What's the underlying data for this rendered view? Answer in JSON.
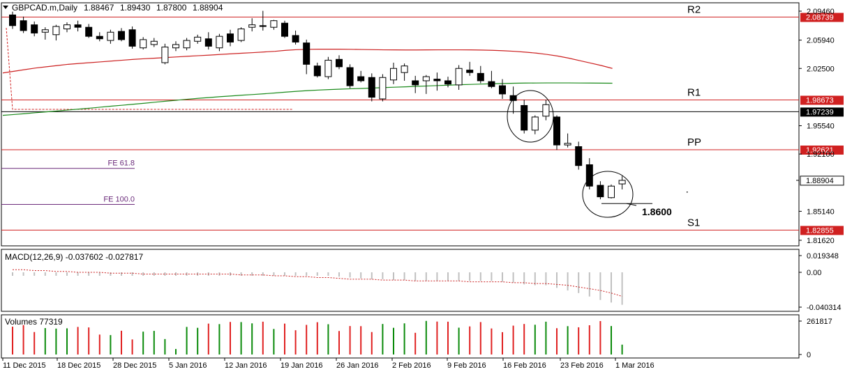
{
  "header": {
    "symbol": "GBPCAD.m,Daily",
    "open": "1.88467",
    "high": "1.89430",
    "low": "1.87800",
    "close": "1.88904"
  },
  "price_axis": {
    "ticks": [
      "2.09460",
      "2.05940",
      "2.02500",
      "1.95540",
      "1.92100",
      "1.85140",
      "1.81620"
    ]
  },
  "levels": [
    {
      "name": "R2",
      "price": 2.08739,
      "label": "2.08739",
      "color": "#d02020"
    },
    {
      "name": "R1",
      "price": 1.98673,
      "label": "1.98673",
      "color": "#d02020"
    },
    {
      "name": "",
      "price": 1.97239,
      "label": "1.97239",
      "color": "#000000"
    },
    {
      "name": "PP",
      "price": 1.92621,
      "label": "1.92621",
      "color": "#d02020"
    },
    {
      "name": "S1",
      "price": 1.82855,
      "label": "1.82855",
      "color": "#d02020"
    }
  ],
  "current_price": {
    "label": "1.88904",
    "price": 1.88904
  },
  "fibonacci": [
    {
      "label": "FE 61.8",
      "price": 1.9036
    },
    {
      "label": "FE 100.0",
      "price": 1.8598
    }
  ],
  "annotation": {
    "label": "1.8600",
    "price": 1.86
  },
  "macd": {
    "label": "MACD(12,26,9) -0.037602 -0.027817",
    "ticks": [
      "0.019348",
      "0.00",
      "-0.040314"
    ],
    "max": 0.019348,
    "min": -0.040314
  },
  "volume": {
    "label": "Volumes 77319",
    "ticks": [
      "261817",
      "0"
    ],
    "max": 261817
  },
  "time_axis": {
    "labels": [
      "11 Dec 2015",
      "18 Dec 2015",
      "28 Dec 2015",
      "5 Jan 2016",
      "12 Jan 2016",
      "19 Jan 2016",
      "26 Jan 2016",
      "2 Feb 2016",
      "9 Feb 2016",
      "16 Feb 2016",
      "23 Feb 2016",
      "1 Mar 2016"
    ]
  },
  "colors": {
    "bull_body": "#ffffff",
    "bear_body": "#000000",
    "ma_slow": "#cc2020",
    "ma_fast": "#1a8a1a",
    "vol_up": "#0a8a0a",
    "vol_down": "#e02020",
    "macd_hist": "#c0c0c0",
    "macd_signal": "#cc2020"
  },
  "chart_data": {
    "type": "candlestick",
    "candles": [
      {
        "o": 2.09,
        "h": 2.094,
        "l": 2.073,
        "c": 2.077
      },
      {
        "o": 2.083,
        "h": 2.088,
        "l": 2.068,
        "c": 2.071
      },
      {
        "o": 2.078,
        "h": 2.082,
        "l": 2.064,
        "c": 2.068
      },
      {
        "o": 2.069,
        "h": 2.075,
        "l": 2.06,
        "c": 2.072
      },
      {
        "o": 2.066,
        "h": 2.078,
        "l": 2.059,
        "c": 2.076
      },
      {
        "o": 2.073,
        "h": 2.081,
        "l": 2.069,
        "c": 2.078
      },
      {
        "o": 2.078,
        "h": 2.083,
        "l": 2.07,
        "c": 2.075
      },
      {
        "o": 2.075,
        "h": 2.079,
        "l": 2.062,
        "c": 2.064
      },
      {
        "o": 2.064,
        "h": 2.069,
        "l": 2.058,
        "c": 2.061
      },
      {
        "o": 2.059,
        "h": 2.072,
        "l": 2.055,
        "c": 2.069
      },
      {
        "o": 2.07,
        "h": 2.074,
        "l": 2.058,
        "c": 2.06
      },
      {
        "o": 2.072,
        "h": 2.076,
        "l": 2.049,
        "c": 2.052
      },
      {
        "o": 2.05,
        "h": 2.063,
        "l": 2.048,
        "c": 2.06
      },
      {
        "o": 2.054,
        "h": 2.062,
        "l": 2.051,
        "c": 2.058
      },
      {
        "o": 2.032,
        "h": 2.055,
        "l": 2.03,
        "c": 2.051
      },
      {
        "o": 2.05,
        "h": 2.058,
        "l": 2.046,
        "c": 2.054
      },
      {
        "o": 2.05,
        "h": 2.062,
        "l": 2.047,
        "c": 2.059
      },
      {
        "o": 2.058,
        "h": 2.066,
        "l": 2.055,
        "c": 2.063
      },
      {
        "o": 2.061,
        "h": 2.069,
        "l": 2.048,
        "c": 2.052
      },
      {
        "o": 2.05,
        "h": 2.067,
        "l": 2.046,
        "c": 2.064
      },
      {
        "o": 2.067,
        "h": 2.072,
        "l": 2.052,
        "c": 2.057
      },
      {
        "o": 2.059,
        "h": 2.075,
        "l": 2.057,
        "c": 2.073
      },
      {
        "o": 2.075,
        "h": 2.086,
        "l": 2.07,
        "c": 2.078
      },
      {
        "o": 2.077,
        "h": 2.095,
        "l": 2.071,
        "c": 2.076
      },
      {
        "o": 2.075,
        "h": 2.084,
        "l": 2.072,
        "c": 2.083
      },
      {
        "o": 2.08,
        "h": 2.083,
        "l": 2.062,
        "c": 2.064
      },
      {
        "o": 2.065,
        "h": 2.071,
        "l": 2.054,
        "c": 2.057
      },
      {
        "o": 2.056,
        "h": 2.06,
        "l": 2.018,
        "c": 2.03
      },
      {
        "o": 2.028,
        "h": 2.032,
        "l": 2.014,
        "c": 2.016
      },
      {
        "o": 2.015,
        "h": 2.039,
        "l": 2.012,
        "c": 2.035
      },
      {
        "o": 2.036,
        "h": 2.041,
        "l": 2.024,
        "c": 2.027
      },
      {
        "o": 2.026,
        "h": 2.03,
        "l": 2.001,
        "c": 2.004
      },
      {
        "o": 2.015,
        "h": 2.022,
        "l": 2.008,
        "c": 2.01
      },
      {
        "o": 2.014,
        "h": 2.019,
        "l": 1.985,
        "c": 1.99
      },
      {
        "o": 1.988,
        "h": 2.018,
        "l": 1.985,
        "c": 2.014
      },
      {
        "o": 2.011,
        "h": 2.032,
        "l": 2.006,
        "c": 2.025
      },
      {
        "o": 2.02,
        "h": 2.031,
        "l": 2.01,
        "c": 2.028
      },
      {
        "o": 2.01,
        "h": 2.016,
        "l": 1.995,
        "c": 2.005
      },
      {
        "o": 2.01,
        "h": 2.017,
        "l": 1.994,
        "c": 2.015
      },
      {
        "o": 2.012,
        "h": 2.02,
        "l": 1.998,
        "c": 2.01
      },
      {
        "o": 2.01,
        "h": 2.015,
        "l": 2.002,
        "c": 2.006
      },
      {
        "o": 2.005,
        "h": 2.029,
        "l": 1.999,
        "c": 2.025
      },
      {
        "o": 2.023,
        "h": 2.033,
        "l": 2.016,
        "c": 2.02
      },
      {
        "o": 2.019,
        "h": 2.028,
        "l": 2.007,
        "c": 2.01
      },
      {
        "o": 2.009,
        "h": 2.022,
        "l": 2.001,
        "c": 2.003
      },
      {
        "o": 2.004,
        "h": 2.012,
        "l": 1.988,
        "c": 1.994
      },
      {
        "o": 1.992,
        "h": 2.003,
        "l": 1.97,
        "c": 1.986
      },
      {
        "o": 1.98,
        "h": 1.987,
        "l": 1.946,
        "c": 1.95
      },
      {
        "o": 1.95,
        "h": 1.968,
        "l": 1.945,
        "c": 1.966
      },
      {
        "o": 1.967,
        "h": 1.987,
        "l": 1.962,
        "c": 1.981
      },
      {
        "o": 1.966,
        "h": 1.968,
        "l": 1.926,
        "c": 1.932
      },
      {
        "o": 1.932,
        "h": 1.946,
        "l": 1.929,
        "c": 1.934
      },
      {
        "o": 1.93,
        "h": 1.936,
        "l": 1.902,
        "c": 1.907
      },
      {
        "o": 1.908,
        "h": 1.916,
        "l": 1.878,
        "c": 1.882
      },
      {
        "o": 1.883,
        "h": 1.888,
        "l": 1.866,
        "c": 1.869
      },
      {
        "o": 1.868,
        "h": 1.884,
        "l": 1.867,
        "c": 1.882
      },
      {
        "o": 1.88467,
        "h": 1.8943,
        "l": 1.878,
        "c": 1.88904
      }
    ],
    "volumes": [
      218000,
      230000,
      176000,
      207000,
      203000,
      205000,
      216000,
      212000,
      156000,
      152000,
      186000,
      118000,
      179000,
      185000,
      121000,
      43000,
      216000,
      209000,
      242000,
      238000,
      255000,
      254000,
      244000,
      257000,
      200000,
      242000,
      190000,
      232000,
      253000,
      237000,
      184000,
      223000,
      222000,
      176000,
      239000,
      209000,
      244000,
      170000,
      263000,
      258000,
      257000,
      210000,
      220000,
      254000,
      204000,
      175000,
      226000,
      239000,
      233000,
      257000,
      206000,
      222000,
      213000,
      229000,
      261817,
      223000,
      77319
    ],
    "macd_hist": [
      -0.004,
      -0.004,
      -0.004,
      -0.004,
      -0.004,
      -0.004,
      -0.004,
      -0.004,
      -0.004,
      -0.004,
      -0.004,
      -0.004,
      -0.004,
      -0.004,
      -0.004,
      -0.004,
      -0.004,
      -0.004,
      -0.004,
      -0.004,
      -0.004,
      -0.004,
      -0.004,
      -0.004,
      -0.004,
      -0.004,
      -0.004,
      -0.004,
      -0.004,
      -0.004,
      -0.005,
      -0.006,
      -0.007,
      -0.008,
      -0.008,
      -0.009,
      -0.009,
      -0.01,
      -0.01,
      -0.01,
      -0.01,
      -0.01,
      -0.01,
      -0.01,
      -0.01,
      -0.011,
      -0.012,
      -0.014,
      -0.015,
      -0.015,
      -0.018,
      -0.021,
      -0.024,
      -0.028,
      -0.032,
      -0.035,
      -0.037602
    ],
    "macd_signal": [
      0.003,
      0.003,
      0.002,
      0.002,
      0.001,
      0.001,
      0.0,
      0.0,
      0.0,
      -0.001,
      -0.001,
      -0.001,
      -0.002,
      -0.002,
      -0.002,
      -0.002,
      -0.002,
      -0.002,
      -0.002,
      -0.002,
      -0.002,
      -0.003,
      -0.003,
      -0.003,
      -0.004,
      -0.004,
      -0.005,
      -0.005,
      -0.006,
      -0.006,
      -0.007,
      -0.008,
      -0.008,
      -0.008,
      -0.009,
      -0.009,
      -0.009,
      -0.01,
      -0.01,
      -0.01,
      -0.01,
      -0.01,
      -0.011,
      -0.011,
      -0.011,
      -0.011,
      -0.012,
      -0.012,
      -0.013,
      -0.013,
      -0.014,
      -0.015,
      -0.017,
      -0.019,
      -0.021,
      -0.024,
      -0.027817
    ],
    "ma_slow": [
      2.0195,
      2.0215,
      2.0235,
      2.0255,
      2.027,
      2.0285,
      2.03,
      2.031,
      2.032,
      2.033,
      2.034,
      2.035,
      2.036,
      2.0368,
      2.0375,
      2.0382,
      2.039,
      2.0398,
      2.0405,
      2.0412,
      2.042,
      2.0428,
      2.0435,
      2.0442,
      2.045,
      2.0458,
      2.047,
      2.0478,
      2.0482,
      2.0484,
      2.0484,
      2.0484,
      2.0482,
      2.048,
      2.0478,
      2.0476,
      2.0475,
      2.0474,
      2.0474,
      2.0475,
      2.0476,
      2.0476,
      2.0476,
      2.0475,
      2.0473,
      2.047,
      2.0465,
      2.0458,
      2.0448,
      2.0436,
      2.042,
      2.04,
      2.0375,
      2.0345,
      2.0315,
      2.0285,
      2.025
    ],
    "ma_fast": [
      1.968,
      1.969,
      1.97,
      1.9712,
      1.9722,
      1.9733,
      1.9745,
      1.9756,
      1.9767,
      1.978,
      1.9792,
      1.9803,
      1.9815,
      1.9827,
      1.984,
      1.9852,
      1.9864,
      1.9876,
      1.9887,
      1.9897,
      1.9907,
      1.9916,
      1.9925,
      1.9933,
      1.9942,
      1.9952,
      1.9962,
      1.9972,
      1.998,
      1.9987,
      1.9993,
      1.9998,
      2.0003,
      2.0007,
      2.0012,
      2.0017,
      2.0022,
      2.0027,
      2.0032,
      2.0037,
      2.0042,
      2.0047,
      2.0052,
      2.0056,
      2.006,
      2.0064,
      2.0067,
      2.007,
      2.0072,
      2.0073,
      2.0074,
      2.0074,
      2.0074,
      2.0073,
      2.0072,
      2.0071,
      2.007
    ]
  }
}
